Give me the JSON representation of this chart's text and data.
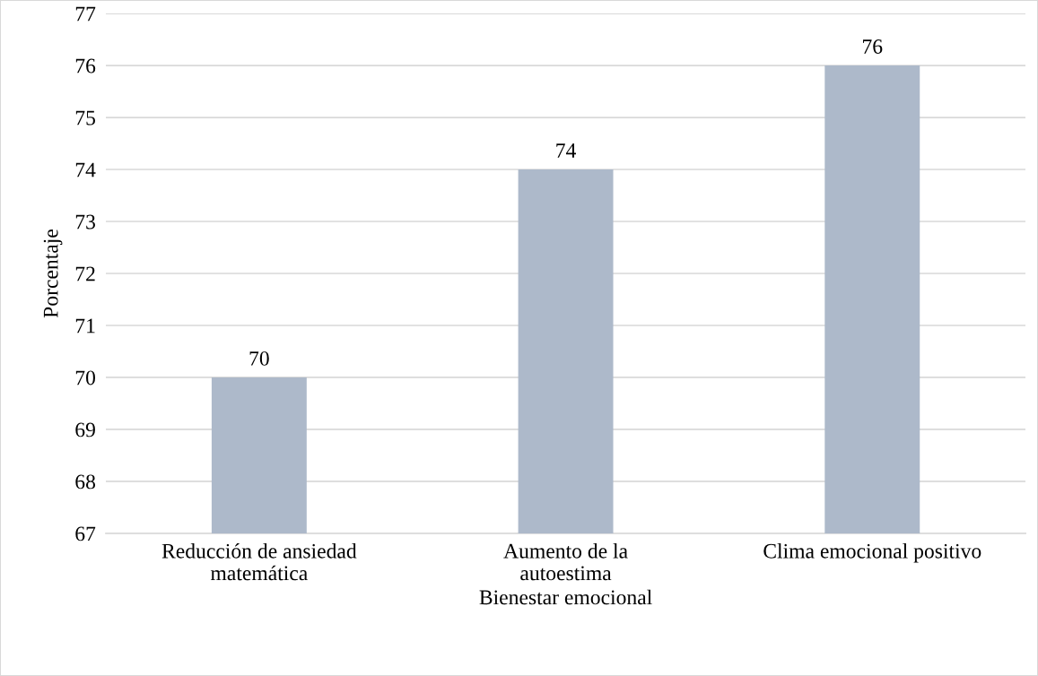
{
  "chart_data": {
    "type": "bar",
    "xlabel": "Bienestar emocional",
    "ylabel": "Porcentaje",
    "categories": [
      "Reducción de ansiedad\nmatemática",
      "Aumento de la\nautoestima",
      "Clima emocional positivo"
    ],
    "values": [
      70,
      74,
      76
    ],
    "color": "#adb9ca",
    "ylim": [
      67,
      77
    ],
    "yticks": [
      67,
      68,
      69,
      70,
      71,
      72,
      73,
      74,
      75,
      76,
      77
    ],
    "grid": "y",
    "data_labels": true,
    "legend": false
  }
}
